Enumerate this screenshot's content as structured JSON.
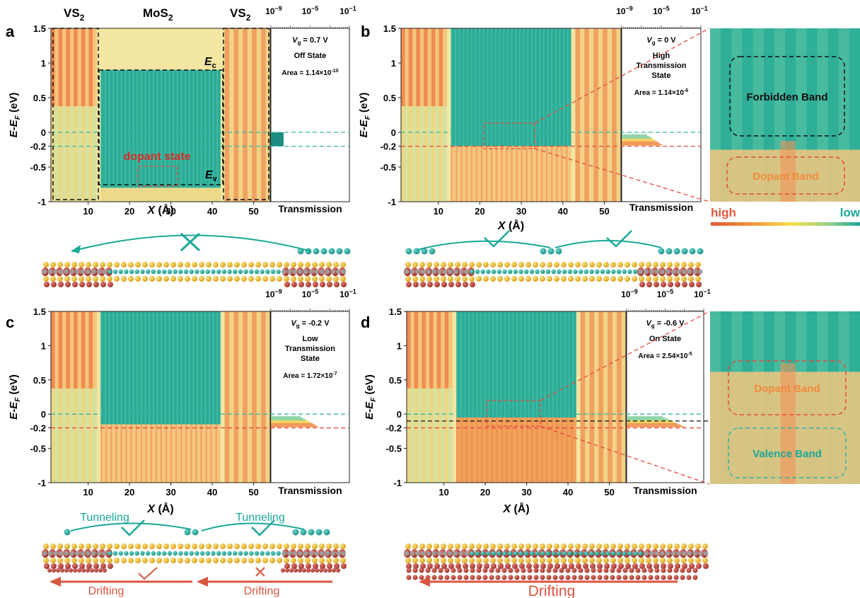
{
  "colors": {
    "high": "#e2583a",
    "mid": "#f5d27a",
    "pale": "#f3eba6",
    "low": "#1aa898",
    "teal_dash": "#30b6a8",
    "red_dash": "#e34b40",
    "box_black": "#111111",
    "sulfur": "#e8b21a",
    "metal_teal": "#2aa79b",
    "metal_grey": "#8c8c8c",
    "density": "#b73a34",
    "electron": "#23a394",
    "arrow_drift": "#d9553f"
  },
  "common": {
    "y_label_main": "E-E",
    "y_label_sub": "F",
    "y_label_unit": " (eV)",
    "x_label_main": "X",
    "x_label_unit": " (Å)",
    "transmission_label": "Transmission",
    "y_ticks": [
      "1.5",
      "1",
      "0.5",
      "0",
      "-0.2",
      "-0.5",
      "-1"
    ],
    "y_tick_values": [
      1.5,
      1,
      0.5,
      0,
      -0.2,
      -0.5,
      -1
    ],
    "x_ticks": [
      "10",
      "20",
      "30",
      "40",
      "50"
    ],
    "x_tick_values": [
      10,
      20,
      30,
      40,
      50
    ],
    "x_range": [
      1,
      54
    ],
    "y_range": [
      -1,
      1.5
    ],
    "t_ticks_base": [
      "10",
      "10",
      "10"
    ],
    "t_ticks_exp": [
      "−9",
      "−5",
      "−1"
    ]
  },
  "panels": [
    {
      "letter": "a",
      "vg_label": "V",
      "vg_sub": "g",
      "vg_value": " = 0.7 V",
      "state": [
        "Off State"
      ],
      "area_base": "Area = 1.14×10",
      "area_exp": "-10"
    },
    {
      "letter": "b",
      "vg_label": "V",
      "vg_sub": "g",
      "vg_value": " = 0 V",
      "state": [
        "High",
        "Transmission",
        "State"
      ],
      "area_base": "Area = 1.14×10",
      "area_exp": "-6"
    },
    {
      "letter": "c",
      "vg_label": "V",
      "vg_sub": "g",
      "vg_value": " = -0.2 V",
      "state": [
        "Low",
        "Transmission",
        "State"
      ],
      "area_base": "Area = 1.72×10",
      "area_exp": "-7"
    },
    {
      "letter": "d",
      "vg_label": "V",
      "vg_sub": "g",
      "vg_value": " = -0.6 V",
      "state": [
        "On State"
      ],
      "area_base": "Area = 2.54×10",
      "area_exp": "-5"
    }
  ],
  "region_labels": {
    "vs2_left": "VS",
    "mos2": "MoS",
    "vs2_right": "VS",
    "sub": "2",
    "ec": "E",
    "ec_sub": "c",
    "ev": "E",
    "ev_sub": "v",
    "dopant_state": "dopant state"
  },
  "insets": {
    "forbidden_band": "Forbidden Band",
    "dopant_band": "Dopant Band",
    "valence_band": "Valence Band",
    "colorbar_high": "high",
    "colorbar_low": "low"
  },
  "arrows": {
    "tunneling": "Tunneling",
    "drifting": "Drifting"
  }
}
